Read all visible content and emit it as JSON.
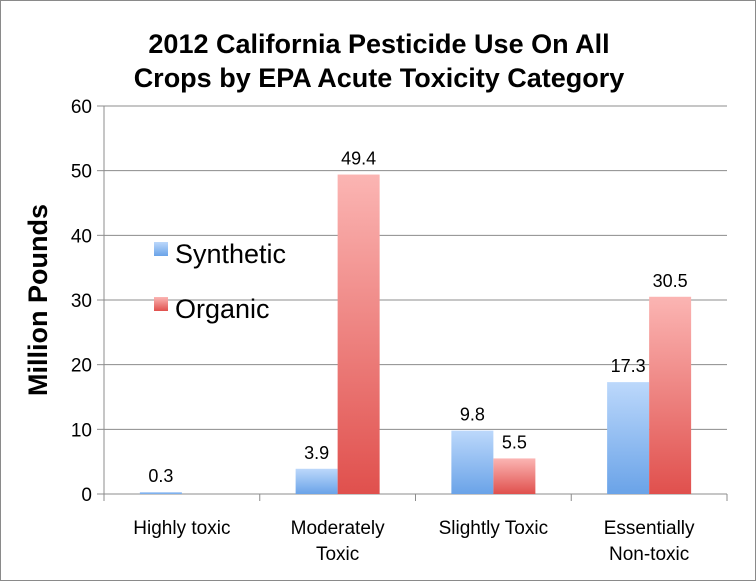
{
  "chart_data": {
    "type": "bar",
    "title_lines": [
      "2012 California Pesticide Use On All",
      "Crops by EPA Acute Toxicity Category"
    ],
    "ylabel": "Million Pounds",
    "xlabel": "",
    "ylim": [
      0,
      60
    ],
    "yticks": [
      0,
      10,
      20,
      30,
      40,
      50,
      60
    ],
    "grid": true,
    "legend_position": "left",
    "categories": [
      [
        "Highly toxic"
      ],
      [
        "Moderately",
        "Toxic"
      ],
      [
        "Slightly Toxic"
      ],
      [
        "Essentially",
        "Non-toxic"
      ]
    ],
    "series": [
      {
        "name": "Synthetic",
        "values": [
          0.3,
          3.9,
          9.8,
          17.3
        ],
        "labels": [
          "0.3",
          "3.9",
          "9.8",
          "17.3"
        ],
        "color": "#6aa3e8",
        "color_light": "#bcd8fb"
      },
      {
        "name": "Organic",
        "values": [
          null,
          49.4,
          5.5,
          30.5
        ],
        "labels": [
          "",
          "49.4",
          "5.5",
          "30.5"
        ],
        "color": "#e0504d",
        "color_light": "#fbb5b3"
      }
    ]
  }
}
